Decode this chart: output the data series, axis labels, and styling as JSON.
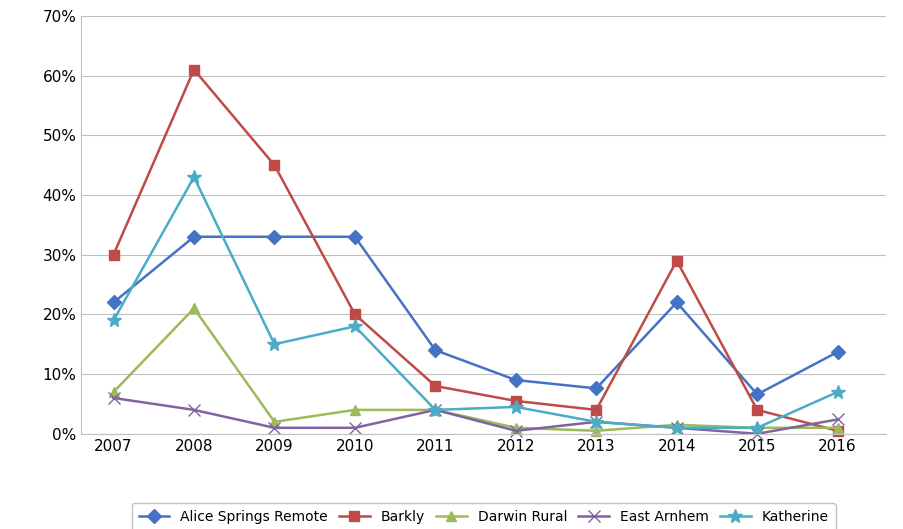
{
  "years": [
    2007,
    2008,
    2009,
    2010,
    2011,
    2012,
    2013,
    2014,
    2015,
    2016
  ],
  "series": {
    "Alice Springs Remote": {
      "values": [
        0.22,
        0.33,
        0.33,
        0.33,
        0.14,
        0.09,
        0.076,
        0.22,
        0.066,
        0.137
      ],
      "color": "#4472C4",
      "marker": "D",
      "markersize": 7
    },
    "Barkly": {
      "values": [
        0.3,
        0.61,
        0.45,
        0.2,
        0.08,
        0.055,
        0.04,
        0.29,
        0.04,
        0.005
      ],
      "color": "#BE4B48",
      "marker": "s",
      "markersize": 7
    },
    "Darwin Rural": {
      "values": [
        0.07,
        0.21,
        0.02,
        0.04,
        0.04,
        0.01,
        0.005,
        0.015,
        0.01,
        0.01
      ],
      "color": "#9BBB59",
      "marker": "^",
      "markersize": 7
    },
    "East Arnhem": {
      "values": [
        0.06,
        0.04,
        0.01,
        0.01,
        0.04,
        0.005,
        0.02,
        0.01,
        0.0,
        0.024
      ],
      "color": "#8064A2",
      "marker": "x",
      "markersize": 9
    },
    "Katherine": {
      "values": [
        0.19,
        0.43,
        0.15,
        0.18,
        0.04,
        0.045,
        0.02,
        0.01,
        0.01,
        0.07
      ],
      "color": "#4BACC6",
      "marker": "*",
      "markersize": 10
    }
  },
  "ylim": [
    0.0,
    0.7
  ],
  "yticks": [
    0.0,
    0.1,
    0.2,
    0.3,
    0.4,
    0.5,
    0.6,
    0.7
  ],
  "ytick_labels": [
    "0%",
    "10%",
    "20%",
    "30%",
    "40%",
    "50%",
    "60%",
    "70%"
  ],
  "background_color": "#FFFFFF",
  "plot_bg_color": "#FFFFFF",
  "grid_color": "#C0C0C0",
  "linewidth": 1.8,
  "legend_order": [
    "Alice Springs Remote",
    "Barkly",
    "Darwin Rural",
    "East Arnhem",
    "Katherine"
  ],
  "tick_fontsize": 11,
  "legend_fontsize": 10
}
